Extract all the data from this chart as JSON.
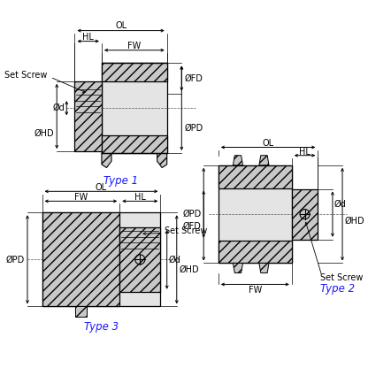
{
  "bg_color": "#ffffff",
  "blue_color": "#1a1aff",
  "lw_main": 0.9,
  "lw_dim": 0.7,
  "lw_ext": 0.5,
  "hatch_fc": "#c8c8c8",
  "body_fc": "#e4e4e4",
  "hatch_pattern": "///",
  "font_dim": 7.0,
  "font_type": 8.5,
  "t1_label": "Type 1",
  "t2_label": "Type 2",
  "t3_label": "Type 3",
  "labels_dim": [
    "OL",
    "HL",
    "FW",
    "Set Screw",
    "ØFD",
    "ØPD",
    "ØHD",
    "Ød"
  ],
  "labels_dim2": [
    "OL",
    "HL",
    "ØPD",
    "ØFD",
    "Ød",
    "ØHD",
    "Set Screw",
    "FW"
  ],
  "labels_dim3": [
    "OL",
    "FW",
    "HL",
    "Set Screw",
    "ØPD",
    "Ød",
    "ØHD"
  ]
}
